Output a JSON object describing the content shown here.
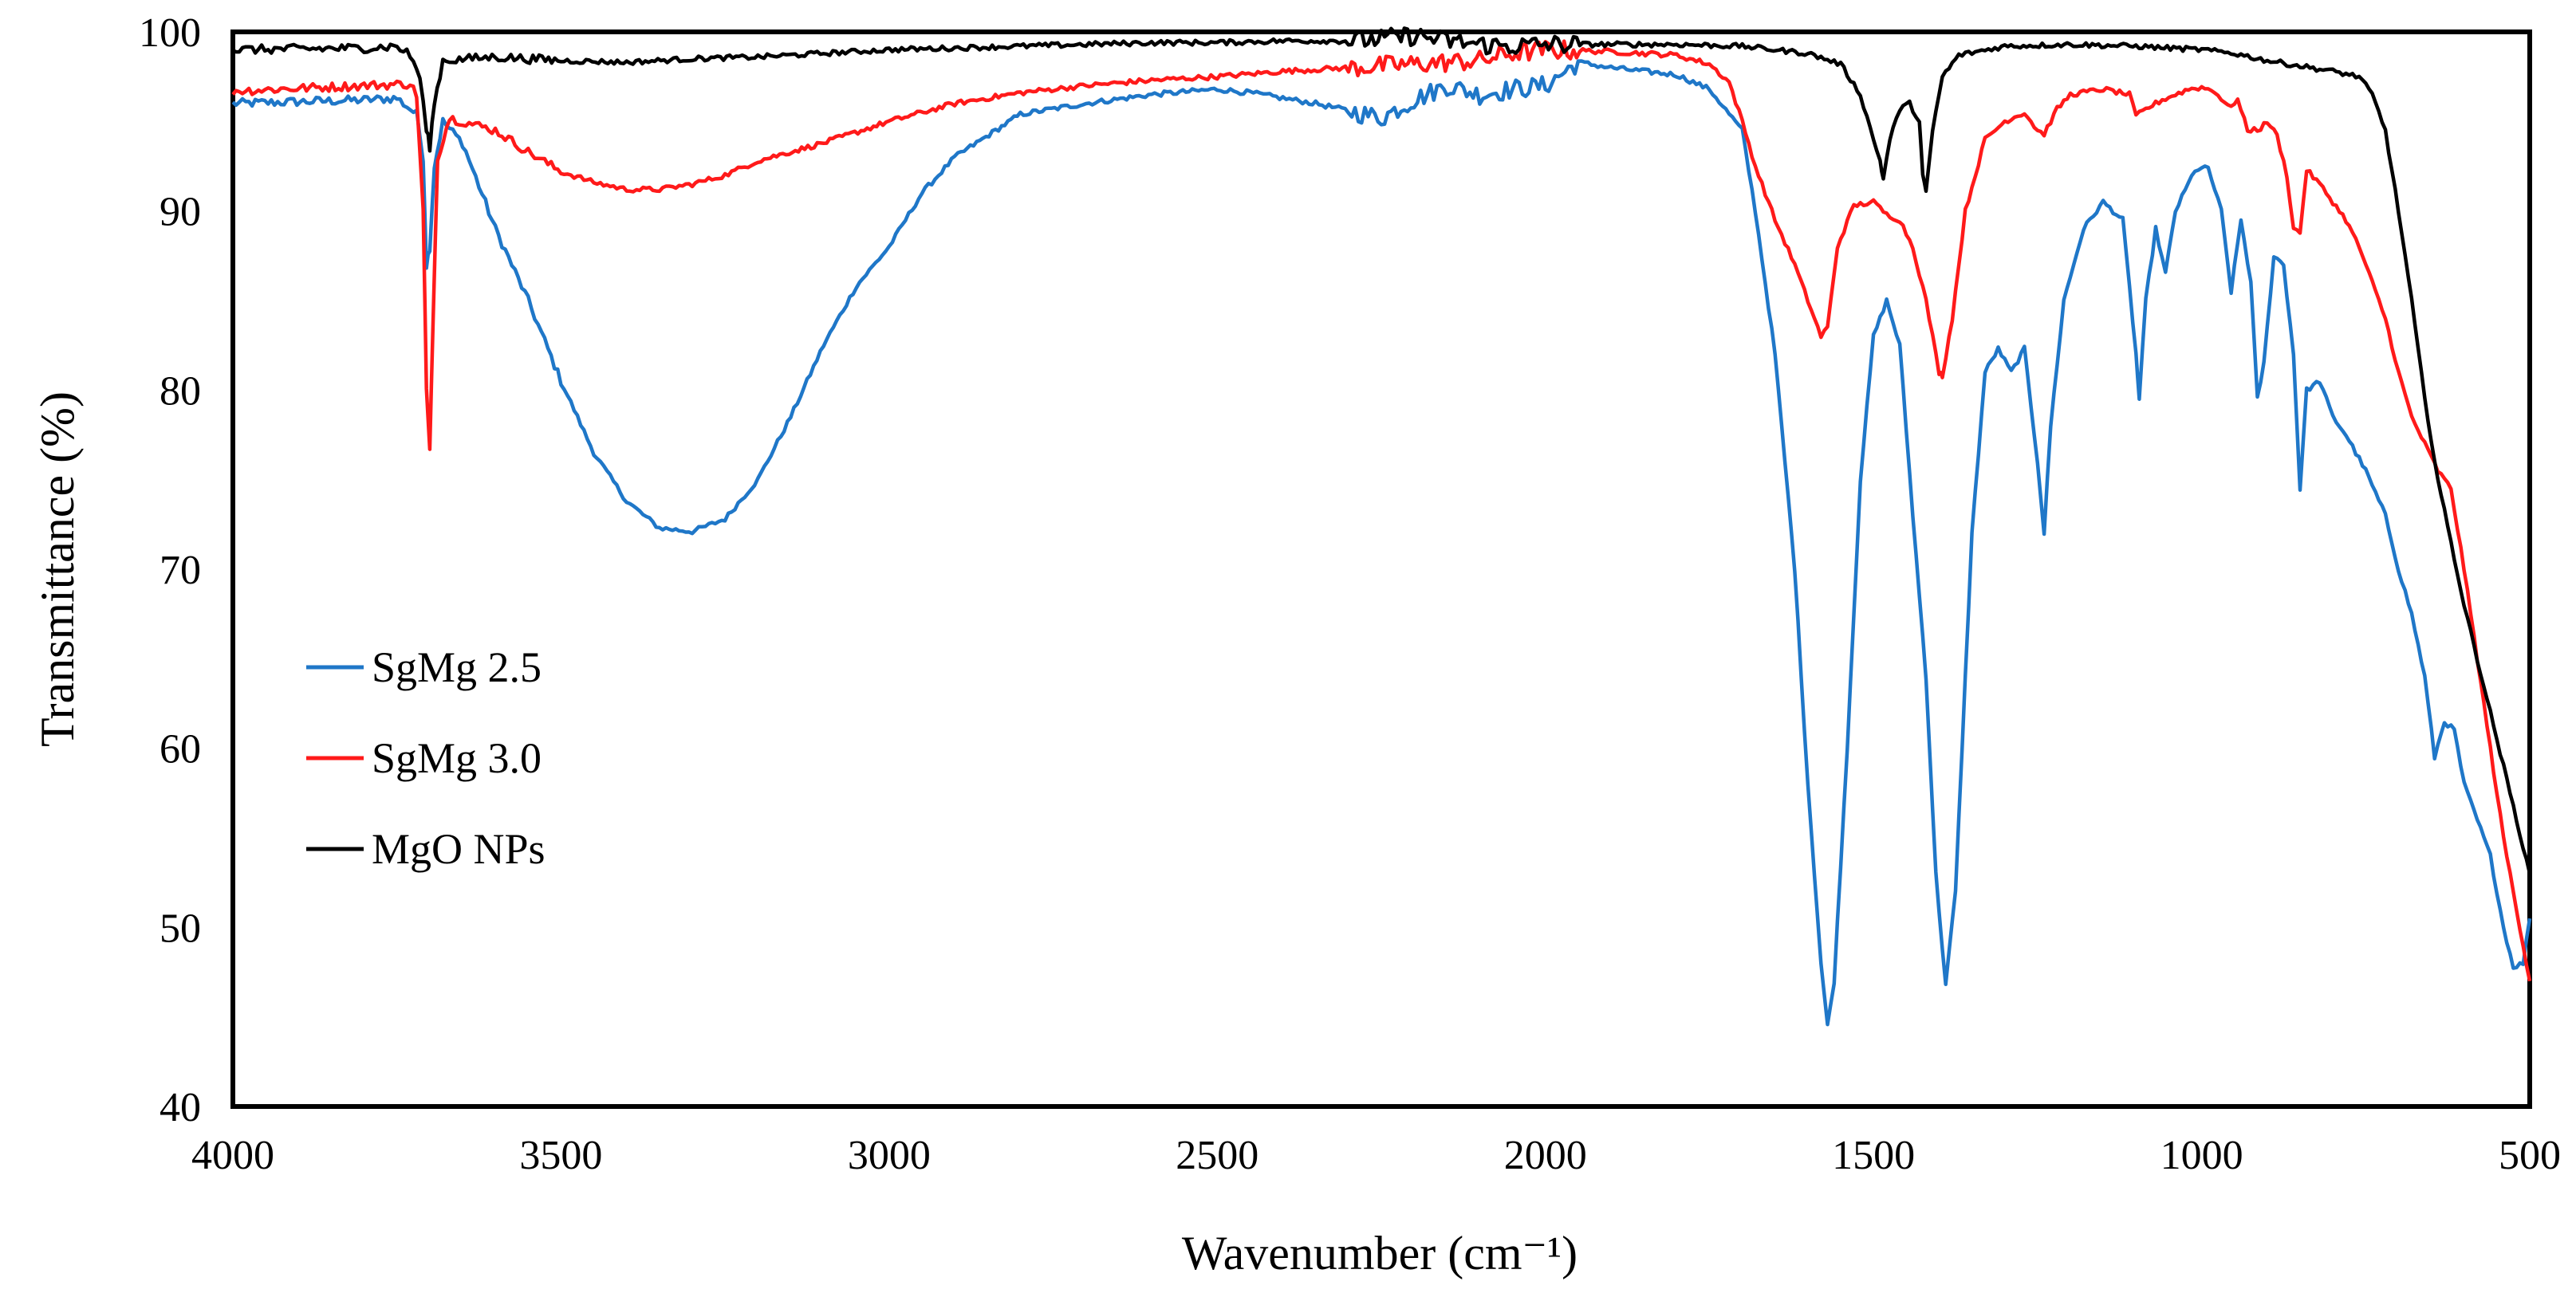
{
  "chart_data": {
    "type": "line",
    "title": "",
    "xlabel": "Wavenumber (cm⁻¹)",
    "ylabel": "Transmittance (%)",
    "xlim": [
      4000,
      500
    ],
    "ylim": [
      40,
      100
    ],
    "x_ticks": [
      "4000",
      "3500",
      "3000",
      "2500",
      "2000",
      "1500",
      "1000",
      "500"
    ],
    "y_ticks": [
      "40",
      "50",
      "60",
      "70",
      "80",
      "90",
      "100"
    ],
    "grid": false,
    "legend_position": "left",
    "series": [
      {
        "name": "SgMg 2.5",
        "color": "#1f77c8",
        "points": [
          [
            4000,
            96.0
          ],
          [
            3800,
            96.2
          ],
          [
            3750,
            96.3
          ],
          [
            3720,
            95.4
          ],
          [
            3710,
            93.0
          ],
          [
            3705,
            87.0
          ],
          [
            3700,
            88.0
          ],
          [
            3693,
            92.5
          ],
          [
            3680,
            95.0
          ],
          [
            3650,
            93.8
          ],
          [
            3600,
            89.0
          ],
          [
            3550,
            85.0
          ],
          [
            3500,
            80.5
          ],
          [
            3450,
            76.5
          ],
          [
            3400,
            73.8
          ],
          [
            3350,
            72.3
          ],
          [
            3300,
            72.1
          ],
          [
            3250,
            72.8
          ],
          [
            3200,
            75.0
          ],
          [
            3150,
            78.5
          ],
          [
            3100,
            82.5
          ],
          [
            3050,
            85.8
          ],
          [
            3000,
            88.0
          ],
          [
            2950,
            91.0
          ],
          [
            2900,
            93.0
          ],
          [
            2800,
            95.4
          ],
          [
            2700,
            96.0
          ],
          [
            2600,
            96.5
          ],
          [
            2500,
            96.8
          ],
          [
            2450,
            96.6
          ],
          [
            2400,
            96.3
          ],
          [
            2350,
            96.0
          ],
          [
            2300,
            95.6
          ],
          [
            2250,
            95.2
          ],
          [
            2200,
            96.2
          ],
          [
            2150,
            97.0
          ],
          [
            2100,
            96.5
          ],
          [
            2050,
            96.8
          ],
          [
            2000,
            97.0
          ],
          [
            1950,
            98.3
          ],
          [
            1900,
            98.0
          ],
          [
            1800,
            97.6
          ],
          [
            1750,
            96.8
          ],
          [
            1700,
            94.5
          ],
          [
            1680,
            90.0
          ],
          [
            1650,
            82.0
          ],
          [
            1620,
            70.0
          ],
          [
            1600,
            58.0
          ],
          [
            1580,
            48.0
          ],
          [
            1570,
            44.5
          ],
          [
            1560,
            47.0
          ],
          [
            1540,
            60.0
          ],
          [
            1520,
            75.0
          ],
          [
            1500,
            83.0
          ],
          [
            1480,
            85.0
          ],
          [
            1460,
            82.5
          ],
          [
            1440,
            73.0
          ],
          [
            1420,
            64.0
          ],
          [
            1405,
            53.0
          ],
          [
            1390,
            46.8
          ],
          [
            1375,
            52.0
          ],
          [
            1350,
            72.0
          ],
          [
            1330,
            81.0
          ],
          [
            1310,
            82.3
          ],
          [
            1290,
            81.0
          ],
          [
            1270,
            82.3
          ],
          [
            1250,
            76.0
          ],
          [
            1240,
            72.0
          ],
          [
            1230,
            78.0
          ],
          [
            1210,
            85.0
          ],
          [
            1180,
            89.0
          ],
          [
            1150,
            90.5
          ],
          [
            1120,
            89.5
          ],
          [
            1100,
            82.0
          ],
          [
            1095,
            79.5
          ],
          [
            1085,
            85.0
          ],
          [
            1070,
            89.0
          ],
          [
            1055,
            86.5
          ],
          [
            1040,
            90.0
          ],
          [
            1010,
            92.3
          ],
          [
            990,
            92.4
          ],
          [
            970,
            90.0
          ],
          [
            955,
            85.5
          ],
          [
            940,
            89.5
          ],
          [
            925,
            86.0
          ],
          [
            915,
            79.5
          ],
          [
            905,
            81.5
          ],
          [
            890,
            87.5
          ],
          [
            875,
            87.0
          ],
          [
            860,
            82.0
          ],
          [
            850,
            74.5
          ],
          [
            840,
            80.0
          ],
          [
            820,
            80.5
          ],
          [
            800,
            78.5
          ],
          [
            780,
            77.5
          ],
          [
            750,
            75.5
          ],
          [
            720,
            73.0
          ],
          [
            700,
            70.0
          ],
          [
            680,
            67.5
          ],
          [
            660,
            64.0
          ],
          [
            645,
            59.5
          ],
          [
            630,
            61.5
          ],
          [
            615,
            61.0
          ],
          [
            600,
            58.0
          ],
          [
            580,
            56.0
          ],
          [
            560,
            54.0
          ],
          [
            540,
            50.0
          ],
          [
            525,
            47.8
          ],
          [
            510,
            48.0
          ],
          [
            500,
            50.5
          ]
        ]
      },
      {
        "name": "SgMg 3.0",
        "color": "#ff1a1a",
        "points": [
          [
            4000,
            96.7
          ],
          [
            3800,
            97.0
          ],
          [
            3730,
            97.1
          ],
          [
            3720,
            96.5
          ],
          [
            3710,
            90.0
          ],
          [
            3705,
            80.0
          ],
          [
            3700,
            76.5
          ],
          [
            3695,
            84.0
          ],
          [
            3688,
            93.0
          ],
          [
            3670,
            95.2
          ],
          [
            3600,
            94.5
          ],
          [
            3550,
            93.3
          ],
          [
            3500,
            92.2
          ],
          [
            3450,
            91.6
          ],
          [
            3400,
            91.2
          ],
          [
            3350,
            91.2
          ],
          [
            3300,
            91.5
          ],
          [
            3250,
            92.0
          ],
          [
            3200,
            92.8
          ],
          [
            3100,
            93.8
          ],
          [
            3000,
            95.0
          ],
          [
            2900,
            96.0
          ],
          [
            2800,
            96.6
          ],
          [
            2700,
            97.0
          ],
          [
            2600,
            97.3
          ],
          [
            2500,
            97.5
          ],
          [
            2400,
            97.8
          ],
          [
            2300,
            98.0
          ],
          [
            2200,
            98.2
          ],
          [
            2100,
            98.4
          ],
          [
            2050,
            98.8
          ],
          [
            2000,
            99.0
          ],
          [
            1900,
            98.9
          ],
          [
            1800,
            98.7
          ],
          [
            1750,
            98.2
          ],
          [
            1720,
            97.2
          ],
          [
            1700,
            95.0
          ],
          [
            1680,
            92.5
          ],
          [
            1650,
            89.5
          ],
          [
            1620,
            87.0
          ],
          [
            1600,
            85.0
          ],
          [
            1580,
            83.0
          ],
          [
            1570,
            83.5
          ],
          [
            1555,
            88.0
          ],
          [
            1530,
            90.3
          ],
          [
            1500,
            90.5
          ],
          [
            1480,
            89.8
          ],
          [
            1460,
            89.5
          ],
          [
            1440,
            88.0
          ],
          [
            1420,
            85.0
          ],
          [
            1400,
            81.0
          ],
          [
            1395,
            80.8
          ],
          [
            1380,
            84.0
          ],
          [
            1360,
            90.0
          ],
          [
            1330,
            94.0
          ],
          [
            1300,
            95.0
          ],
          [
            1270,
            95.5
          ],
          [
            1250,
            94.5
          ],
          [
            1240,
            94.3
          ],
          [
            1220,
            95.7
          ],
          [
            1200,
            96.5
          ],
          [
            1150,
            96.8
          ],
          [
            1110,
            96.5
          ],
          [
            1100,
            95.3
          ],
          [
            1080,
            95.8
          ],
          [
            1060,
            96.2
          ],
          [
            1020,
            96.8
          ],
          [
            1000,
            96.9
          ],
          [
            980,
            96.7
          ],
          [
            960,
            95.8
          ],
          [
            945,
            96.2
          ],
          [
            930,
            94.5
          ],
          [
            910,
            94.6
          ],
          [
            900,
            95.0
          ],
          [
            885,
            94.2
          ],
          [
            870,
            92.0
          ],
          [
            860,
            89.0
          ],
          [
            850,
            88.8
          ],
          [
            840,
            92.3
          ],
          [
            820,
            91.5
          ],
          [
            800,
            90.5
          ],
          [
            780,
            89.5
          ],
          [
            760,
            88.0
          ],
          [
            740,
            86.0
          ],
          [
            720,
            84.0
          ],
          [
            700,
            81.0
          ],
          [
            680,
            78.5
          ],
          [
            660,
            77.0
          ],
          [
            640,
            75.5
          ],
          [
            620,
            74.5
          ],
          [
            600,
            70.0
          ],
          [
            580,
            65.0
          ],
          [
            560,
            60.0
          ],
          [
            540,
            55.0
          ],
          [
            520,
            51.0
          ],
          [
            500,
            47.0
          ]
        ]
      },
      {
        "name": "MgO NPs",
        "color": "#000000",
        "points": [
          [
            4000,
            99.0
          ],
          [
            3800,
            99.1
          ],
          [
            3750,
            99.2
          ],
          [
            3730,
            98.7
          ],
          [
            3715,
            97.5
          ],
          [
            3705,
            94.5
          ],
          [
            3700,
            93.6
          ],
          [
            3693,
            96.0
          ],
          [
            3680,
            98.4
          ],
          [
            3600,
            98.6
          ],
          [
            3500,
            98.4
          ],
          [
            3400,
            98.3
          ],
          [
            3300,
            98.5
          ],
          [
            3200,
            98.6
          ],
          [
            3100,
            98.8
          ],
          [
            3000,
            99.0
          ],
          [
            2900,
            99.1
          ],
          [
            2800,
            99.2
          ],
          [
            2700,
            99.3
          ],
          [
            2600,
            99.4
          ],
          [
            2500,
            99.4
          ],
          [
            2400,
            99.5
          ],
          [
            2300,
            99.5
          ],
          [
            2250,
            99.6
          ],
          [
            2200,
            99.8
          ],
          [
            2150,
            99.5
          ],
          [
            2100,
            99.3
          ],
          [
            2050,
            99.2
          ],
          [
            2000,
            99.3
          ],
          [
            1900,
            99.3
          ],
          [
            1800,
            99.3
          ],
          [
            1700,
            99.2
          ],
          [
            1600,
            98.8
          ],
          [
            1550,
            98.2
          ],
          [
            1520,
            96.5
          ],
          [
            1500,
            94.0
          ],
          [
            1490,
            92.8
          ],
          [
            1485,
            91.8
          ],
          [
            1475,
            94.0
          ],
          [
            1460,
            95.7
          ],
          [
            1445,
            96.0
          ],
          [
            1430,
            95.0
          ],
          [
            1425,
            92.0
          ],
          [
            1420,
            91.0
          ],
          [
            1410,
            94.5
          ],
          [
            1395,
            97.5
          ],
          [
            1370,
            98.7
          ],
          [
            1300,
            99.2
          ],
          [
            1200,
            99.3
          ],
          [
            1100,
            99.2
          ],
          [
            1000,
            99.0
          ],
          [
            950,
            98.8
          ],
          [
            900,
            98.4
          ],
          [
            850,
            98.1
          ],
          [
            800,
            97.8
          ],
          [
            760,
            97.5
          ],
          [
            740,
            96.5
          ],
          [
            720,
            94.5
          ],
          [
            700,
            90.0
          ],
          [
            680,
            85.0
          ],
          [
            660,
            79.5
          ],
          [
            640,
            75.0
          ],
          [
            620,
            71.5
          ],
          [
            600,
            68.0
          ],
          [
            580,
            65.0
          ],
          [
            560,
            62.0
          ],
          [
            540,
            59.0
          ],
          [
            520,
            56.0
          ],
          [
            510,
            54.5
          ],
          [
            500,
            53.0
          ]
        ]
      }
    ]
  }
}
